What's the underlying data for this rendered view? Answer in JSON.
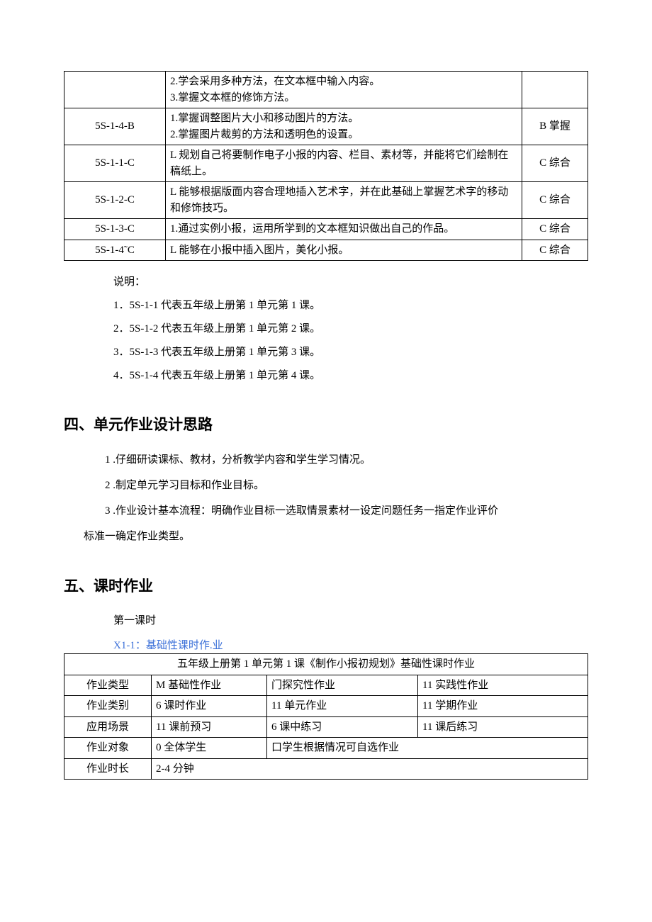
{
  "table1": {
    "rows": [
      {
        "code": "",
        "desc": "2.学会采用多种方法，在文本框中输入内容。\n3.掌握文本框的修饰方法。",
        "level": ""
      },
      {
        "code": "5S-1-4-B",
        "desc": "1.掌握调整图片大小和移动图片的方法。\n2.掌握图片裁剪的方法和透明色的设置。",
        "level": "B 掌握"
      },
      {
        "code": "5S-1-1-C",
        "desc": "    L 规划自己将要制作电子小报的内容、栏目、素材等，并能将它们绘制在稿纸上。",
        "level": "C 综合"
      },
      {
        "code": "5S-1-2-C",
        "desc": "    L 能够根据版面内容合理地插入艺术字，并在此基础上掌握艺术字的移动和修饰技巧。",
        "level": "C 综合"
      },
      {
        "code": "5S-1-3-C",
        "desc": "    1.通过实例小报，运用所学到的文本框知识做出自己的作品。",
        "level": "C 综合"
      },
      {
        "code": "5S-1-4˜C",
        "desc": "    L 能够在小报中插入图片，美化小报。",
        "level": "C 综合"
      }
    ]
  },
  "notes": {
    "heading": "说明：",
    "items": [
      "1．5S-1-1 代表五年级上册第 1 单元第 1 课。",
      "2．5S-1-2 代表五年级上册第 1 单元第 2 课。",
      "3．5S-1-3 代表五年级上册第 1 单元第 3 课。",
      "4．5S-1-4 代表五年级上册第 1 单元第 4 课。"
    ]
  },
  "section4": {
    "title": "四、单元作业设计思路",
    "items": [
      "1 .仔细研读课标、教材，分析教学内容和学生学习情况。",
      "2 .制定单元学习目标和作业目标。",
      "3 .作业设计基本流程：明确作业目标一选取情景素材一设定问题任务一指定作业评价",
      "标准一确定作业类型。"
    ]
  },
  "section5": {
    "title": "五、课时作业",
    "subhead": "第一课时",
    "xlabel": "X1-1：基础性课时作.业"
  },
  "table2": {
    "header": "五年级上册第 1 单元第 1 课《制作小报初规划》基础性课时作业",
    "rows": [
      {
        "label": "作业类型",
        "c1": "M 基础性作业",
        "c2": "门探究性作业",
        "c3": "11 实践性作业"
      },
      {
        "label": "作业类别",
        "c1": "6 课时作业",
        "c2": "11 单元作业",
        "c3": "11 学期作业"
      },
      {
        "label": "应用场景",
        "c1": "11 课前预习",
        "c2": "6 课中练习",
        "c3": "11 课后练习"
      },
      {
        "label": "作业对象",
        "c1": "0 全体学生",
        "c2": "口学生根据情况可自选作业",
        "c3": ""
      },
      {
        "label": "作业时长",
        "c1": "2-4 分钟",
        "c2": "",
        "c3": ""
      }
    ]
  }
}
